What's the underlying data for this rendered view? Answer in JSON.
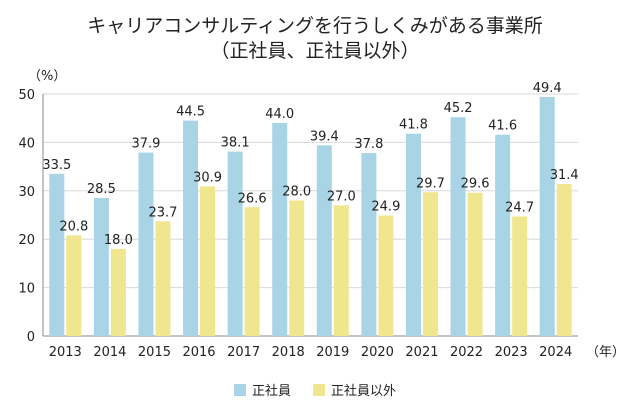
{
  "chart_data": {
    "type": "bar",
    "title": "キャリアコンサルティングを行うしくみがある事業所",
    "subtitle": "（正社員、正社員以外）",
    "ylabel": "（%）",
    "xlabel": "（年）",
    "ylim": [
      0,
      50
    ],
    "yticks": [
      0,
      10,
      20,
      30,
      40,
      50
    ],
    "categories": [
      "2013",
      "2014",
      "2015",
      "2016",
      "2017",
      "2018",
      "2019",
      "2020",
      "2021",
      "2022",
      "2023",
      "2024"
    ],
    "series": [
      {
        "name": "正社員",
        "color": "#a9d4e6",
        "values": [
          33.5,
          28.5,
          37.9,
          44.5,
          38.1,
          44.0,
          39.4,
          37.8,
          41.8,
          45.2,
          41.6,
          49.4
        ]
      },
      {
        "name": "正社員以外",
        "color": "#f0e68f",
        "values": [
          20.8,
          18.0,
          23.7,
          30.9,
          26.6,
          28.0,
          27.0,
          24.9,
          29.7,
          29.6,
          24.7,
          31.4
        ]
      }
    ]
  }
}
